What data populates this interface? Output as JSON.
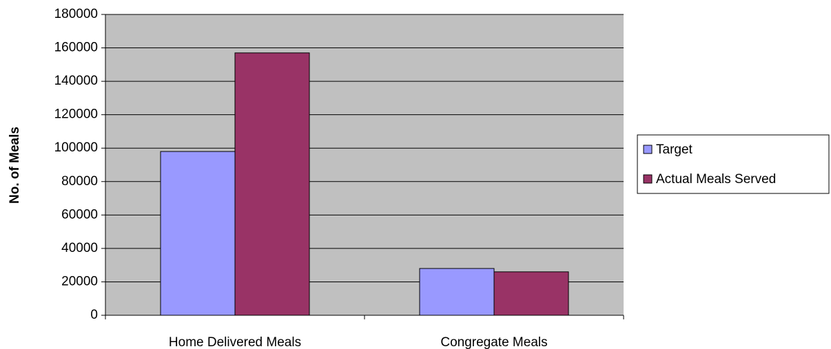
{
  "chart_data": {
    "type": "bar",
    "y_label": "No. of Meals",
    "categories": [
      "Home Delivered Meals",
      "Congregate Meals"
    ],
    "series": [
      {
        "name": "Target",
        "color": "#9999ff",
        "values": [
          98000,
          28000
        ]
      },
      {
        "name": "Actual Meals Served",
        "color": "#993366",
        "values": [
          157000,
          26000
        ]
      }
    ],
    "ylim": [
      0,
      180000
    ],
    "yticks": [
      0,
      20000,
      40000,
      60000,
      80000,
      100000,
      120000,
      140000,
      160000,
      180000
    ],
    "grid": true,
    "legend": "right",
    "plot_background": "#c0c0c0"
  }
}
